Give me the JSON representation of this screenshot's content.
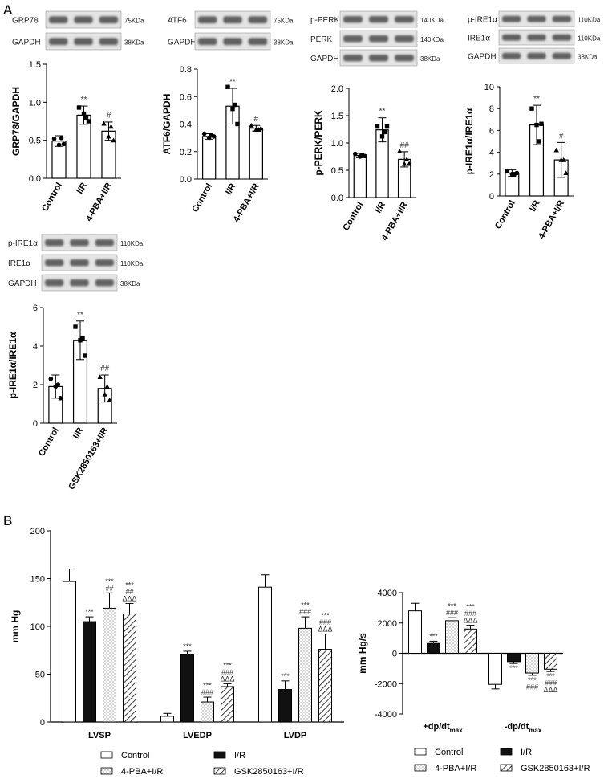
{
  "panel_labels": {
    "a": "A",
    "b": "B"
  },
  "blots": {
    "grp78": {
      "rows": [
        {
          "label": "GRP78",
          "kda": "75KDa"
        },
        {
          "label": "GAPDH",
          "kda": "38KDa"
        }
      ]
    },
    "atf6": {
      "rows": [
        {
          "label": "ATF6",
          "kda": "75KDa"
        },
        {
          "label": "GAPDH",
          "kda": "38KDa"
        }
      ]
    },
    "perk": {
      "rows": [
        {
          "label": "p-PERK",
          "kda": "140KDa"
        },
        {
          "label": "PERK",
          "kda": "140KDa"
        },
        {
          "label": "GAPDH",
          "kda": "38KDa"
        }
      ]
    },
    "ire1": {
      "rows": [
        {
          "label": "p-IRE1α",
          "kda": "110KDa"
        },
        {
          "label": "IRE1α",
          "kda": "110KDa"
        },
        {
          "label": "GAPDH",
          "kda": "38KDa"
        }
      ]
    },
    "ire1_gsk": {
      "rows": [
        {
          "label": "p-IRE1α",
          "kda": "110KDa"
        },
        {
          "label": "IRE1α",
          "kda": "110KDa"
        },
        {
          "label": "GAPDH",
          "kda": "38KDa"
        }
      ]
    }
  },
  "chart_data": [
    {
      "type": "bar",
      "id": "grp78",
      "ylabel": "GRP78/GAPDH",
      "ylim": [
        0,
        1.5
      ],
      "yticks": [
        "0.0",
        "0.5",
        "1.0",
        "1.5"
      ],
      "categories": [
        "Control",
        "I/R",
        "4-PBA+I/R"
      ],
      "values": [
        0.49,
        0.83,
        0.62
      ],
      "errors": [
        0.07,
        0.12,
        0.12
      ],
      "points": [
        [
          0.52,
          0.44,
          0.45,
          0.53
        ],
        [
          0.93,
          0.85,
          0.75,
          0.79
        ],
        [
          0.72,
          0.55,
          0.5,
          0.68
        ]
      ],
      "sig_above": [
        "",
        "**",
        "#"
      ],
      "sig_below": [
        "",
        "",
        ""
      ]
    },
    {
      "type": "bar",
      "id": "atf6",
      "ylabel": "ATF6/GAPDH",
      "ylim": [
        0,
        0.8
      ],
      "yticks": [
        "0.0",
        "0.2",
        "0.4",
        "0.6",
        "0.8"
      ],
      "categories": [
        "Control",
        "I/R",
        "4-PBA+I/R"
      ],
      "values": [
        0.31,
        0.53,
        0.37
      ],
      "errors": [
        0.02,
        0.13,
        0.02
      ],
      "points": [
        [
          0.33,
          0.3,
          0.31,
          0.32
        ],
        [
          0.67,
          0.51,
          0.4,
          0.54
        ],
        [
          0.39,
          0.36,
          0.37,
          0.36
        ]
      ],
      "sig_above": [
        "",
        "**",
        "#"
      ],
      "sig_below": [
        "",
        "",
        ""
      ]
    },
    {
      "type": "bar",
      "id": "perk",
      "ylabel": "p-PERK/PERK",
      "ylim": [
        0,
        2.0
      ],
      "yticks": [
        "0.0",
        "0.5",
        "1.0",
        "1.5",
        "2.0"
      ],
      "categories": [
        "Control",
        "I/R",
        "4-PBA+I/R"
      ],
      "values": [
        0.77,
        1.24,
        0.7
      ],
      "errors": [
        0.04,
        0.22,
        0.14
      ],
      "points": [
        [
          0.8,
          0.75,
          0.76,
          0.78
        ],
        [
          1.3,
          1.12,
          1.3,
          1.2
        ],
        [
          0.85,
          0.62,
          0.62,
          0.7
        ]
      ],
      "sig_above": [
        "",
        "**",
        "##"
      ],
      "sig_below": [
        "",
        "",
        ""
      ]
    },
    {
      "type": "bar",
      "id": "ire1",
      "ylabel": "p-IRE1α/IRE1α",
      "ylim": [
        0,
        10
      ],
      "yticks": [
        "0",
        "2",
        "4",
        "6",
        "8",
        "10"
      ],
      "categories": [
        "Control",
        "I/R",
        "4-PBA+I/R"
      ],
      "values": [
        2.1,
        6.5,
        3.3
      ],
      "errors": [
        0.3,
        1.8,
        1.6
      ],
      "points": [
        [
          2.3,
          2.0,
          2.1,
          2.0
        ],
        [
          8.0,
          6.5,
          6.6,
          5.0
        ],
        [
          4.2,
          3.3,
          2.1,
          3.3
        ]
      ],
      "sig_above": [
        "",
        "**",
        "#"
      ],
      "sig_below": [
        "",
        "",
        ""
      ]
    },
    {
      "type": "bar",
      "id": "ire1_gsk",
      "ylabel": "p-IRE1α/IRE1α",
      "ylim": [
        0,
        6
      ],
      "yticks": [
        "0",
        "2",
        "4",
        "6"
      ],
      "categories": [
        "Control",
        "I/R",
        "GSK2850163+I/R"
      ],
      "values": [
        1.9,
        4.3,
        1.8
      ],
      "errors": [
        0.6,
        1.0,
        0.7
      ],
      "points": [
        [
          2.3,
          1.9,
          1.3,
          2.0
        ],
        [
          5.0,
          4.3,
          3.5,
          4.4
        ],
        [
          2.4,
          1.5,
          1.2,
          1.9
        ]
      ],
      "sig_above": [
        "",
        "**",
        "##"
      ],
      "sig_below": [
        "",
        "",
        ""
      ]
    },
    {
      "type": "bar",
      "id": "hemo_mmhg",
      "ylabel": "mm Hg",
      "ylim": [
        0,
        200
      ],
      "yticks": [
        "0",
        "50",
        "100",
        "150",
        "200"
      ],
      "categories": [
        "LVSP",
        "LVEDP",
        "LVDP"
      ],
      "series": [
        {
          "name": "Control",
          "values": [
            147,
            6,
            141
          ],
          "errors": [
            13,
            3,
            13
          ]
        },
        {
          "name": "I/R",
          "values": [
            105,
            71,
            34
          ],
          "errors": [
            5,
            3,
            9
          ]
        },
        {
          "name": "4-PBA+I/R",
          "values": [
            119,
            21,
            98
          ],
          "errors": [
            16,
            5,
            12
          ]
        },
        {
          "name": "GSK2850163+I/R",
          "values": [
            113,
            37,
            76
          ],
          "errors": [
            11,
            3,
            16
          ]
        }
      ],
      "sig": [
        [
          "",
          "",
          ""
        ],
        [
          "***",
          "***",
          "***"
        ],
        [
          "***\n##",
          "***\n###",
          "***\n###"
        ],
        [
          "***\n##\nΔΔΔ",
          "***\n###\nΔΔΔ",
          "***\n###\nΔΔΔ"
        ]
      ]
    },
    {
      "type": "bar",
      "id": "hemo_dpdt",
      "ylabel": "mm Hg/s",
      "ylim": [
        -4000,
        4000
      ],
      "yticks": [
        "4000",
        "2000",
        "0",
        "-2000",
        "-4000"
      ],
      "categories": [
        "+dp/dt_max",
        "-dp/dt_max"
      ],
      "category_labels": [
        {
          "main": "+dp/dt",
          "sub": "max"
        },
        {
          "main": "-dp/dt",
          "sub": "max"
        }
      ],
      "series": [
        {
          "name": "Control",
          "values": [
            2800,
            -2050
          ],
          "errors": [
            500,
            300
          ]
        },
        {
          "name": "I/R",
          "values": [
            650,
            -550
          ],
          "errors": [
            150,
            120
          ]
        },
        {
          "name": "4-PBA+I/R",
          "values": [
            2150,
            -1300
          ],
          "errors": [
            200,
            150
          ]
        },
        {
          "name": "GSK2850163+I/R",
          "values": [
            1600,
            -1050
          ],
          "errors": [
            250,
            150
          ]
        }
      ],
      "sig": [
        [
          "",
          ""
        ],
        [
          "***",
          "***"
        ],
        [
          "***\n###",
          "***\n###"
        ],
        [
          "***\n###\nΔΔΔ",
          "***\n###\nΔΔΔ"
        ]
      ]
    }
  ],
  "legend": [
    {
      "name": "Control",
      "pattern": "white"
    },
    {
      "name": "I/R",
      "pattern": "black"
    },
    {
      "name": "4-PBA+I/R",
      "pattern": "dots"
    },
    {
      "name": "GSK2850163+I/R",
      "pattern": "hatch"
    }
  ]
}
